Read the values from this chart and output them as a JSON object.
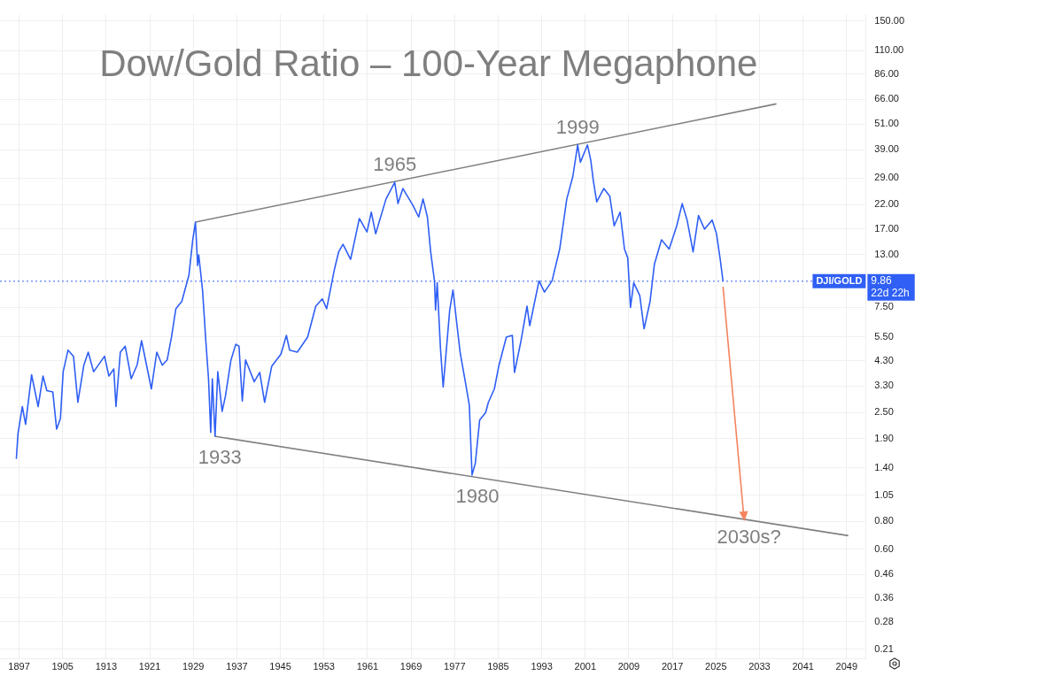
{
  "chart_data": {
    "type": "line",
    "title": "Dow/Gold Ratio – 100-Year Megaphone",
    "log": "y",
    "grid": true,
    "legend": false,
    "line_style": "solid",
    "xlim": [
      1893.5,
      2052.5
    ],
    "xticks": [
      1897,
      1905,
      1913,
      1921,
      1929,
      1937,
      1945,
      1953,
      1961,
      1969,
      1977,
      1985,
      1993,
      2001,
      2009,
      2017,
      2025,
      2033,
      2041,
      2049
    ],
    "ylim": [
      0.19,
      160
    ],
    "yticks": [
      {
        "value": 150,
        "label": "150.00"
      },
      {
        "value": 110,
        "label": "110.00"
      },
      {
        "value": 86,
        "label": "86.00"
      },
      {
        "value": 66,
        "label": "66.00"
      },
      {
        "value": 51,
        "label": "51.00"
      },
      {
        "value": 39,
        "label": "39.00"
      },
      {
        "value": 29,
        "label": "29.00"
      },
      {
        "value": 22,
        "label": "22.00"
      },
      {
        "value": 17,
        "label": "17.00"
      },
      {
        "value": 13,
        "label": "13.00"
      },
      {
        "value": 7.5,
        "label": "7.50"
      },
      {
        "value": 5.5,
        "label": "5.50"
      },
      {
        "value": 4.3,
        "label": "4.30"
      },
      {
        "value": 3.3,
        "label": "3.30"
      },
      {
        "value": 2.5,
        "label": "2.50"
      },
      {
        "value": 1.9,
        "label": "1.90"
      },
      {
        "value": 1.4,
        "label": "1.40"
      },
      {
        "value": 1.05,
        "label": "1.05"
      },
      {
        "value": 0.8,
        "label": "0.80"
      },
      {
        "value": 0.6,
        "label": "0.60"
      },
      {
        "value": 0.46,
        "label": "0.46"
      },
      {
        "value": 0.36,
        "label": "0.36"
      },
      {
        "value": 0.28,
        "label": "0.28"
      },
      {
        "value": 0.21,
        "label": "0.21"
      }
    ],
    "series": [
      {
        "type": "line",
        "color": "#2f5ff5",
        "x": [
          1896.5,
          1896.8,
          1897.6,
          1898.2,
          1899.3,
          1900.5,
          1901.4,
          1902.1,
          1903.2,
          1903.9,
          1904.6,
          1905.1,
          1906,
          1907,
          1907.8,
          1908.9,
          1909.7,
          1910.7,
          1912.7,
          1913.5,
          1914.4,
          1914.8,
          1915.6,
          1916.5,
          1917.6,
          1918.7,
          1919.5,
          1921.3,
          1922.3,
          1923.3,
          1924.2,
          1925,
          1925.8,
          1926.9,
          1928.2,
          1928.9,
          1929.4,
          1929.8,
          1930,
          1930.7,
          1931.3,
          1931.8,
          1932.2,
          1932.5,
          1933,
          1933.5,
          1934.3,
          1934.9,
          1935.9,
          1936.8,
          1937.4,
          1938,
          1938.6,
          1940.2,
          1941.2,
          1942.1,
          1943.4,
          1945.1,
          1946.1,
          1946.7,
          1948.1,
          1950,
          1951.5,
          1952.7,
          1953.5,
          1954.9,
          1955.7,
          1956.5,
          1957.9,
          1959.5,
          1960.9,
          1961.7,
          1962.5,
          1964.4,
          1966,
          1966.6,
          1967.5,
          1969.3,
          1970.4,
          1971.2,
          1972,
          1972.6,
          1973.3,
          1973.5,
          1973.8,
          1974.4,
          1974.9,
          1976.1,
          1976.7,
          1978,
          1979.1,
          1979.7,
          1980.2,
          1980.8,
          1981.6,
          1982.7,
          1983.2,
          1984.3,
          1985.1,
          1986.5,
          1987.6,
          1988,
          1989.2,
          1990.3,
          1990.8,
          1992.5,
          1993.5,
          1994.9,
          1996.3,
          1997.6,
          1998.7,
          1999.6,
          2000.1,
          2001.4,
          2002,
          2002.5,
          2003.1,
          2004.4,
          2005.5,
          2006.3,
          2007.4,
          2008.2,
          2008.8,
          2009.3,
          2009.9,
          2011,
          2011.8,
          2012.9,
          2013.7,
          2015,
          2016.4,
          2017.8,
          2018.8,
          2019.7,
          2020.8,
          2021.8,
          2022.9,
          2024.3,
          2025.1,
          2025.8,
          2026.3
        ],
        "values": [
          1.54,
          2.0,
          2.66,
          2.21,
          3.71,
          2.66,
          3.66,
          3.14,
          3.1,
          2.1,
          2.35,
          3.83,
          4.8,
          4.5,
          2.78,
          4.1,
          4.7,
          3.83,
          4.5,
          3.66,
          3.94,
          2.66,
          4.7,
          5.0,
          3.56,
          4.12,
          5.3,
          3.2,
          4.7,
          4.1,
          4.33,
          5.5,
          7.4,
          8.0,
          10.5,
          15.2,
          18.3,
          11.6,
          13.0,
          9.0,
          5.3,
          3.56,
          2.03,
          3.56,
          1.95,
          3.83,
          2.53,
          2.96,
          4.3,
          5.1,
          5.0,
          2.82,
          4.33,
          3.45,
          3.8,
          2.78,
          4.05,
          4.6,
          5.6,
          4.8,
          4.7,
          5.5,
          7.6,
          8.2,
          7.4,
          11.1,
          13.4,
          14.5,
          12.4,
          19.0,
          16.5,
          20.3,
          16.2,
          23.3,
          27.7,
          22.2,
          26.0,
          21.9,
          19.3,
          23.3,
          19.3,
          13.4,
          9.9,
          7.3,
          9.7,
          4.9,
          3.26,
          7.3,
          9.0,
          4.7,
          3.3,
          2.7,
          1.3,
          1.47,
          2.31,
          2.5,
          2.78,
          3.2,
          4.05,
          5.5,
          5.6,
          3.8,
          5.3,
          7.6,
          6.2,
          9.9,
          8.8,
          9.9,
          13.8,
          23.3,
          29.4,
          41,
          34.2,
          41,
          35,
          28.0,
          22.6,
          26,
          24,
          17.6,
          20.3,
          13.8,
          12.6,
          7.5,
          9.7,
          8.5,
          6.0,
          8.0,
          11.8,
          15.2,
          13.8,
          17.6,
          22.2,
          18.7,
          13.4,
          19.6,
          17.0,
          18.7,
          16.2,
          12.3,
          9.86
        ]
      },
      {
        "type": "line",
        "color": "#808080",
        "x": [
          1929.4,
          2036.1
        ],
        "values": [
          18.3,
          63
        ]
      },
      {
        "type": "line",
        "color": "#808080",
        "x": [
          1932.9,
          2049.3
        ],
        "values": [
          1.95,
          0.69
        ]
      },
      {
        "type": "line",
        "color": "#f4845f",
        "x": [
          2026.3,
          2030.1
        ],
        "values": [
          9.3,
          0.85
        ]
      }
    ],
    "ref_lines": [
      {
        "axis": "y",
        "value": 9.86,
        "label": "DJI/GOLD",
        "color": "#2f5ff5",
        "line_style": "dotted"
      }
    ],
    "annotations": [
      {
        "text": "1933",
        "x": 1932.9,
        "y": 1.95
      },
      {
        "text": "1965",
        "x": 1966,
        "y": 27.7
      },
      {
        "text": "1980",
        "x": 1980.2,
        "y": 1.3
      },
      {
        "text": "1999",
        "x": 1999.6,
        "y": 41
      },
      {
        "text": "2030s?",
        "x": 2030.1,
        "y": 0.85
      },
      "9.86",
      "22d 22h"
    ]
  }
}
